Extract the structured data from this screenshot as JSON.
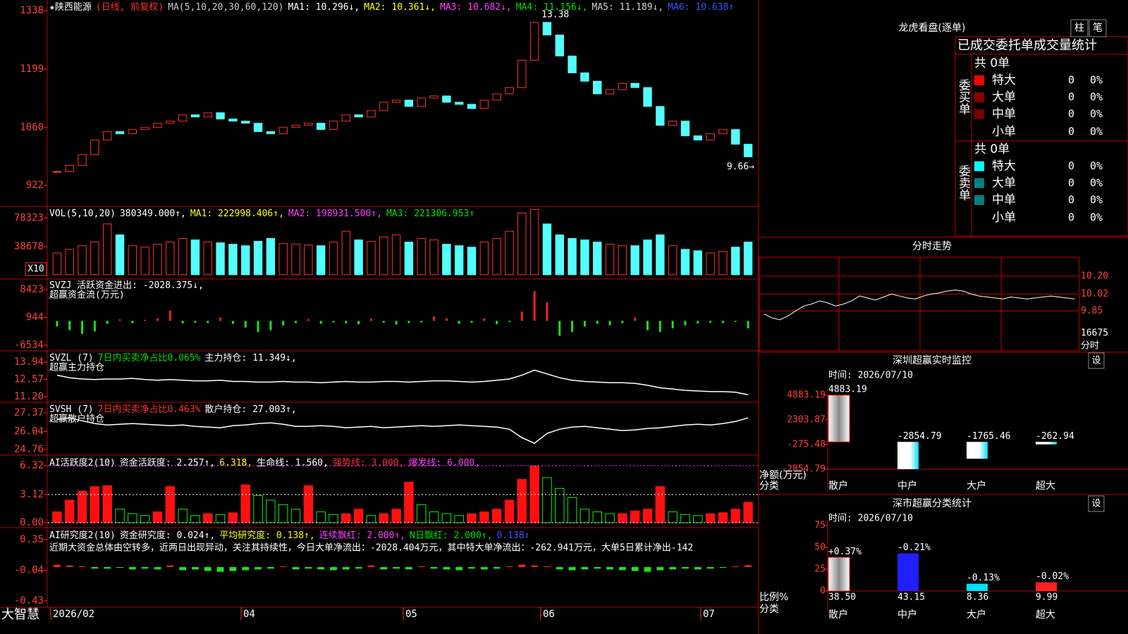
{
  "main": {
    "type": "candle",
    "segments": [
      {
        "text": "★陕西能源",
        "color": "#ffffff"
      },
      {
        "text": "(日线, 前复权)",
        "color": "#ff3030"
      },
      {
        "text": "MA(5,10,20,30,60,120)",
        "color": "#c8c8c8"
      },
      {
        "text": "MA1: 10.296↓,",
        "color": "#ffffff"
      },
      {
        "text": "MA2: 10.361↓,",
        "color": "#ffff00"
      },
      {
        "text": "MA3: 10.682↓,",
        "color": "#ff40ff"
      },
      {
        "text": "MA4: 11.156↓,",
        "color": "#00e000"
      },
      {
        "text": "MA5: 11.189↓,",
        "color": "#d0d0d0"
      },
      {
        "text": "MA6: 10.638↑",
        "color": "#3c50ff"
      }
    ],
    "ylim": [
      8.77,
      13.6
    ],
    "yticks": [
      {
        "value": 13.38,
        "label": "1338"
      },
      {
        "value": 11.99,
        "label": "1199"
      },
      {
        "value": 10.6,
        "label": "1060"
      },
      {
        "value": 9.22,
        "label": "922"
      }
    ],
    "close": [
      9.55,
      9.7,
      9.95,
      10.3,
      10.5,
      10.45,
      10.55,
      10.6,
      10.7,
      10.75,
      10.9,
      10.85,
      10.95,
      10.8,
      10.75,
      10.7,
      10.5,
      10.45,
      10.6,
      10.65,
      10.7,
      10.55,
      10.75,
      10.9,
      10.85,
      11.0,
      11.2,
      11.25,
      11.1,
      11.3,
      11.35,
      11.2,
      11.15,
      11.05,
      11.25,
      11.4,
      11.55,
      12.2,
      13.1,
      12.8,
      12.3,
      11.9,
      11.7,
      11.4,
      11.5,
      11.65,
      11.55,
      11.1,
      10.65,
      10.75,
      10.4,
      10.3,
      10.45,
      10.55,
      10.2,
      9.9
    ],
    "up_color": "#ff3232",
    "down_color": "#54ffff",
    "annotations": [
      {
        "text": "13.38",
        "value": 13.38
      },
      {
        "text": "9.66→",
        "value": 9.66
      }
    ]
  },
  "volume": {
    "type": "volume",
    "segments": [
      {
        "text": "VOL(5,10,20)",
        "color": "#ffffff"
      },
      {
        "text": "380349.000↑,",
        "color": "#ffffff"
      },
      {
        "text": "MA1: 222998.406↑,",
        "color": "#ffff00"
      },
      {
        "text": "MA2: 198931.500↑,",
        "color": "#ff40ff"
      },
      {
        "text": "MA3: 221306.953↑",
        "color": "#00e000"
      }
    ],
    "ylim": [
      0,
      92200
    ],
    "yticks": [
      78323,
      38678
    ],
    "unit": "X10",
    "values": [
      30000,
      35000,
      40000,
      45000,
      70000,
      55000,
      40000,
      38000,
      42000,
      45000,
      50000,
      48000,
      45000,
      44000,
      42000,
      40000,
      46000,
      50000,
      43000,
      42000,
      41000,
      40000,
      45000,
      60000,
      48000,
      46000,
      52000,
      55000,
      45000,
      50000,
      48000,
      42000,
      40000,
      38000,
      45000,
      50000,
      60000,
      85000,
      90000,
      70000,
      55000,
      50000,
      48000,
      45000,
      42000,
      40000,
      40000,
      48000,
      55000,
      40000,
      35000,
      33000,
      30000,
      32000,
      38000,
      45000
    ]
  },
  "svzj": {
    "type": "bar",
    "segments": [
      {
        "text": "SVZJ  活跃资金进出: -2028.375↓,",
        "color": "#ffffff"
      }
    ],
    "subtitle": "超赢资金流(万元)",
    "subtitle_color": "#ffff00",
    "ylim": [
      -7860,
      11074
    ],
    "yticks": [
      8423,
      944,
      -6534
    ],
    "pos_color": "#ff2020",
    "neg_color": "#20e020",
    "values": [
      -1500,
      -2500,
      -3500,
      -2800,
      -800,
      400,
      -600,
      300,
      700,
      2800,
      -700,
      -500,
      -600,
      900,
      -800,
      -1800,
      -3000,
      -2500,
      -1200,
      -600,
      500,
      -800,
      -400,
      -700,
      -900,
      600,
      -500,
      -1000,
      -600,
      -400,
      1200,
      700,
      -800,
      -500,
      600,
      -900,
      -300,
      2500,
      8000,
      5000,
      -4000,
      -3000,
      -1500,
      -800,
      -1200,
      -600,
      900,
      -2500,
      -3000,
      -2000,
      -1200,
      -700,
      -500,
      -600,
      -300,
      -2028.375
    ]
  },
  "svzl": {
    "type": "line",
    "segments": [
      {
        "text": "SVZL (7)",
        "color": "#ffffff"
      },
      {
        "text": "7日内买卖净占比0.065%",
        "color": "#00e000"
      },
      {
        "text": "主力持仓: 11.349↓,",
        "color": "#ffffff"
      }
    ],
    "subtitle": "超赢主力持仓",
    "subtitle_color": "#ffff00",
    "ylim": [
      10.81,
      14.72
    ],
    "yticks": [
      13.94,
      12.57,
      {
        "value": 11.2,
        "label": "11.20"
      }
    ],
    "color": "#ffffff",
    "values": [
      12.9,
      12.7,
      12.6,
      12.55,
      12.6,
      12.6,
      12.65,
      12.55,
      12.5,
      12.55,
      12.5,
      12.45,
      12.45,
      12.5,
      12.4,
      12.4,
      12.35,
      12.35,
      12.4,
      12.35,
      12.35,
      12.3,
      12.35,
      12.4,
      12.35,
      12.35,
      12.4,
      12.4,
      12.35,
      12.4,
      12.45,
      12.45,
      12.4,
      12.35,
      12.4,
      12.5,
      12.6,
      12.9,
      13.3,
      13.0,
      12.7,
      12.5,
      12.4,
      12.35,
      12.3,
      12.3,
      12.25,
      12.1,
      11.9,
      11.8,
      11.7,
      11.65,
      11.6,
      11.6,
      11.55,
      11.349
    ]
  },
  "svsh": {
    "type": "line",
    "segments": [
      {
        "text": "SVSH (7)",
        "color": "#ffffff"
      },
      {
        "text": "7日内买卖净占比0.463%",
        "color": "#ff3030"
      },
      {
        "text": "散户持仓: 27.003↑,",
        "color": "#ffffff"
      }
    ],
    "subtitle": "超赢散户持仓",
    "subtitle_color": "#ffff00",
    "ylim": [
      24.41,
      28.02
    ],
    "yticks": [
      27.37,
      26.04,
      24.76
    ],
    "color": "#ffffff",
    "values": [
      26.9,
      27.0,
      26.8,
      26.6,
      26.5,
      26.55,
      26.6,
      26.55,
      26.5,
      26.45,
      26.5,
      26.4,
      26.35,
      26.3,
      26.45,
      26.5,
      26.6,
      26.65,
      26.55,
      26.4,
      26.4,
      26.45,
      26.4,
      26.3,
      26.35,
      26.4,
      26.3,
      26.35,
      26.4,
      26.45,
      26.4,
      26.45,
      26.5,
      26.45,
      26.4,
      26.35,
      26.2,
      25.6,
      25.2,
      25.9,
      26.2,
      26.35,
      26.4,
      26.3,
      26.2,
      26.1,
      26.15,
      26.25,
      26.3,
      26.4,
      26.5,
      26.55,
      26.5,
      26.6,
      26.75,
      27.003
    ]
  },
  "ai_active": {
    "type": "column",
    "segments": [
      {
        "text": "AI活跃度2(10)",
        "color": "#ffffff"
      },
      {
        "text": "资金活跃度: 2.257↑,",
        "color": "#ffffff"
      },
      {
        "text": "6.318,",
        "color": "#ffff00"
      },
      {
        "text": "生命线: 1.560,",
        "color": "#ffffff"
      },
      {
        "text": "强势线: 3.000,",
        "color": "#ff3030"
      },
      {
        "text": "爆发线: 6.000,",
        "color": "#ff40ff"
      }
    ],
    "ylim": [
      -0.47,
      7.26
    ],
    "yticks": [
      6.32,
      3.12,
      {
        "value": 0,
        "label": "0.00"
      }
    ],
    "grid": true,
    "pos_color": "#ff1010",
    "neg_color": "#10ee10",
    "values": [
      1.2,
      2.5,
      3.5,
      4.0,
      4.1,
      1.5,
      1.0,
      0.8,
      1.2,
      4.0,
      1.5,
      0.8,
      1.0,
      0.9,
      1.1,
      4.2,
      3.0,
      2.5,
      2.0,
      1.5,
      4.1,
      1.2,
      0.9,
      1.0,
      1.5,
      0.8,
      1.0,
      1.5,
      4.5,
      2.0,
      1.2,
      1.0,
      0.8,
      1.0,
      1.2,
      1.5,
      2.5,
      4.8,
      6.3,
      5.0,
      3.8,
      2.8,
      1.5,
      1.2,
      1.0,
      1.0,
      1.3,
      1.5,
      4.0,
      1.2,
      0.9,
      0.8,
      1.0,
      1.1,
      1.5,
      2.257
    ]
  },
  "ai_research": {
    "type": "bar",
    "segments": [
      {
        "text": "AI研究度2(10)",
        "color": "#ffffff"
      },
      {
        "text": "资金研究度: 0.024↑,",
        "color": "#ffffff"
      },
      {
        "text": "平均研究度: 0.138↑,",
        "color": "#ffff00"
      },
      {
        "text": "连续飘红: 2.000↑,",
        "color": "#ff40ff"
      },
      {
        "text": "N日飘红: 2.000↑,",
        "color": "#00e000"
      },
      {
        "text": "0.138↑",
        "color": "#3c50ff"
      }
    ],
    "subtitle": "近期大资金总体由空转多，近两日出现异动，关注其持续性，今日大单净流出：-2028.404万元，其中特大单净流出：-262.941万元，大单5日累计净出-142",
    "subtitle_color": "#ffffff",
    "ylim": [
      -0.51,
      0.474
    ],
    "yticks": [
      0.35,
      -0.04,
      -0.43
    ],
    "pos_color": "#ff2020",
    "neg_color": "#20e020",
    "values": [
      0.03,
      0.02,
      0.01,
      -0.02,
      -0.02,
      -0.01,
      -0.03,
      -0.02,
      -0.03,
      0.02,
      -0.04,
      -0.03,
      -0.05,
      -0.06,
      -0.05,
      -0.04,
      -0.03,
      -0.02,
      0.01,
      -0.03,
      -0.02,
      -0.03,
      -0.04,
      -0.03,
      -0.02,
      0.02,
      -0.03,
      -0.02,
      -0.03,
      0.01,
      -0.02,
      -0.03,
      -0.04,
      -0.02,
      -0.03,
      -0.02,
      0.01,
      0.03,
      0.02,
      0.01,
      -0.03,
      -0.04,
      -0.03,
      -0.02,
      -0.03,
      -0.04,
      -0.05,
      -0.06,
      -0.04,
      -0.03,
      -0.02,
      -0.03,
      -0.02,
      -0.01,
      0.01,
      0.024
    ]
  },
  "x_axis": {
    "labels": [
      "2026/02",
      "04",
      "05",
      "06",
      "07"
    ],
    "brand": "大智慧"
  },
  "right": {
    "title": "龙虎看盘(逐单)",
    "buttons": [
      "柱",
      "笔"
    ],
    "subtitle": "已成交委托单成交量统计",
    "buy": {
      "label": "委买单",
      "total": "共 0单",
      "rows": [
        {
          "name": "特大",
          "count": 0,
          "pct": "0%",
          "color": "#ff0000"
        },
        {
          "name": "大单",
          "count": 0,
          "pct": "0%",
          "color": "#8b0000"
        },
        {
          "name": "中单",
          "count": 0,
          "pct": "0%",
          "color": "#7a0000"
        },
        {
          "name": "小单",
          "count": 0,
          "pct": "0%",
          "color": "#000000"
        }
      ]
    },
    "sell": {
      "label": "委卖单",
      "total": "共 0单",
      "rows": [
        {
          "name": "特大",
          "count": 0,
          "pct": "0%",
          "color": "#00ffff"
        },
        {
          "name": "大单",
          "count": 0,
          "pct": "0%",
          "color": "#008080"
        },
        {
          "name": "中单",
          "count": 0,
          "pct": "0%",
          "color": "#008080"
        },
        {
          "name": "小单",
          "count": 0,
          "pct": "0%",
          "color": "#000000"
        }
      ]
    },
    "intraday": {
      "title": "分时走势",
      "ylim": [
        9.675,
        10.37
      ],
      "yticks": [
        {
          "value": 10.2,
          "label": "10.20"
        },
        10.02,
        9.85
      ],
      "volume_label": "16675",
      "time_label": "分时",
      "color": "#ffffff",
      "values": [
        9.82,
        9.78,
        9.76,
        9.8,
        9.85,
        9.9,
        9.92,
        9.95,
        9.93,
        9.9,
        9.92,
        9.95,
        10.0,
        9.98,
        9.96,
        9.99,
        10.02,
        10.0,
        9.98,
        9.97,
        10.0,
        10.02,
        10.03,
        10.05,
        10.06,
        10.05,
        10.02,
        10.0,
        9.99,
        9.98,
        9.97,
        9.99,
        9.98,
        9.97,
        9.98,
        9.99,
        10.0,
        9.99,
        9.98,
        9.97
      ]
    },
    "sz_monitor": {
      "title": "深圳超赢实时监控",
      "button": "设",
      "time": "时间: 2026/07/10",
      "ylim": [
        -2854.79,
        4883.19
      ],
      "yticks": [
        4883.19,
        2303.87,
        -275.48,
        -2854.79
      ],
      "categories": [
        "散户",
        "中户",
        "大户",
        "超大"
      ],
      "values": [
        4883.19,
        -2854.79,
        -1765.46,
        -262.94
      ],
      "y_label": "净额(万元)",
      "x_label": "分类"
    },
    "sz_stats": {
      "title": "深市超赢分类统计",
      "button": "设",
      "time": "时间: 2026/07/10",
      "ylim": [
        0,
        75
      ],
      "yticks": [
        75,
        50,
        25,
        0
      ],
      "categories": [
        "散户",
        "中户",
        "大户",
        "超大"
      ],
      "values": [
        38.5,
        43.15,
        8.36,
        9.99
      ],
      "value_labels": [
        "38.50",
        "43.15",
        "8.36",
        "9.99"
      ],
      "changes": [
        "+0.37%",
        "-0.21%",
        "-0.13%",
        "-0.02%"
      ],
      "colors": [
        "#20d020",
        "#2020ff",
        "#00e0ff",
        "#ff2020"
      ],
      "y_label": "比例%",
      "x_label": "分类"
    }
  }
}
